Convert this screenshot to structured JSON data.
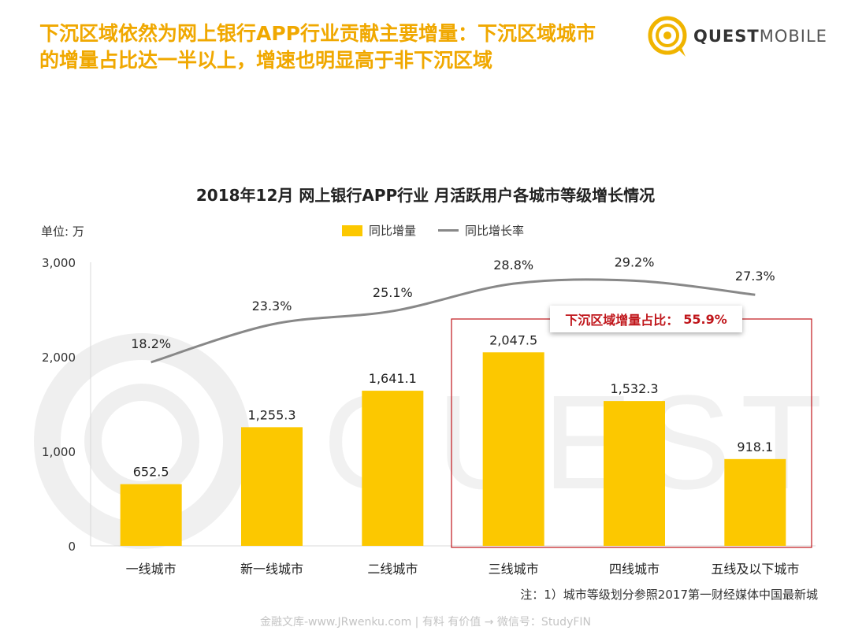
{
  "headline": {
    "line1": "下沉区域依然为网上银行APP行业贡献主要增量：下沉区域城市",
    "line2": "的增量占比达一半以上，增速也明显高于非下沉区域"
  },
  "brand": {
    "part1": "QUEST",
    "part2": "MOBILE"
  },
  "watermark_text": "QUESTMOBILE",
  "unit_label": "单位: 万",
  "callout": {
    "label": "下沉区域增量占比：",
    "value": "55.9%"
  },
  "note": "注：1）城市等级划分参照2017第一财经媒体中国最新城",
  "footer": "金融文库-www.JRwenku.com | 有料  有价值 → 微信号：StudyFIN",
  "colors": {
    "bar": "#fcc800",
    "line": "#888888",
    "headline": "#f0a800",
    "callout_text": "#c0161b",
    "highlight_box": "#c0161b"
  },
  "chart_data": {
    "type": "bar",
    "title": "2018年12月 网上银行APP行业 月活跃用户各城市等级增长情况",
    "categories": [
      "一线城市",
      "新一线城市",
      "二线城市",
      "三线城市",
      "四线城市",
      "五线及以下城市"
    ],
    "series": [
      {
        "name": "同比增量",
        "type": "bar",
        "values": [
          652.5,
          1255.3,
          1641.1,
          2047.5,
          1532.3,
          918.1
        ],
        "labels": [
          "652.5",
          "1,255.3",
          "1,641.1",
          "2,047.5",
          "1,532.3",
          "918.1"
        ]
      },
      {
        "name": "同比增长率",
        "type": "line",
        "values": [
          18.2,
          23.3,
          25.1,
          28.8,
          29.2,
          27.3
        ],
        "labels": [
          "18.2%",
          "23.3%",
          "25.1%",
          "28.8%",
          "29.2%",
          "27.3%"
        ]
      }
    ],
    "y_axis": {
      "min": 0,
      "max": 3000,
      "ticks": [
        0,
        1000,
        2000,
        3000
      ],
      "tick_labels": [
        "0",
        "1,000",
        "2,000",
        "3,000"
      ]
    },
    "highlight_categories": [
      "三线城市",
      "四线城市",
      "五线及以下城市"
    ],
    "legend_position": "top-center",
    "grid": false
  }
}
